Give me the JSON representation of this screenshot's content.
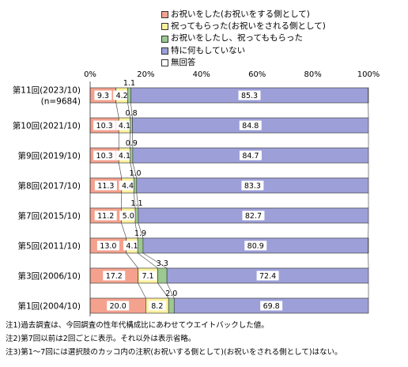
{
  "chart_data": {
    "type": "bar",
    "orientation": "horizontal",
    "stacked": true,
    "percent": true,
    "categories": [
      [
        "第11回(2023/10)",
        "(n=9684)"
      ],
      [
        "第10回(2021/10)"
      ],
      [
        "第9回(2019/10)"
      ],
      [
        "第8回(2017/10)"
      ],
      [
        "第7回(2015/10)"
      ],
      [
        "第5回(2011/10)"
      ],
      [
        "第3回(2006/10)"
      ],
      [
        "第1回(2004/10)"
      ]
    ],
    "series": [
      {
        "name": "お祝いをした(お祝いをする側として)",
        "color": "#f4a18e",
        "values": [
          9.3,
          10.3,
          10.3,
          11.3,
          11.2,
          13.0,
          17.2,
          20.0
        ],
        "labels": [
          "9.3",
          "10.3",
          "10.3",
          "11.3",
          "11.2",
          "13.0",
          "17.2",
          "20.0"
        ]
      },
      {
        "name": "祝ってもらった(お祝いをされる側として)",
        "color": "#fdf09c",
        "values": [
          4.2,
          4.1,
          4.1,
          4.4,
          5.0,
          4.1,
          7.1,
          8.2
        ],
        "labels": [
          "4.2",
          "4.1",
          "4.1",
          "4.4",
          "5.0",
          "4.1",
          "7.1",
          "8.2"
        ]
      },
      {
        "name": "お祝いをしたし、祝ってももらった",
        "color": "#9bc991",
        "values": [
          1.1,
          0.8,
          0.9,
          1.0,
          1.1,
          1.9,
          3.3,
          2.0
        ],
        "labels": [
          "1.1",
          "0.8",
          "0.9",
          "1.0",
          "1.1",
          "1.9",
          "3.3",
          "2.0"
        ]
      },
      {
        "name": "特に何もしていない",
        "color": "#9c9fd8",
        "values": [
          85.3,
          84.8,
          84.7,
          83.3,
          82.7,
          80.9,
          72.4,
          69.8
        ],
        "labels": [
          "85.3",
          "84.8",
          "84.7",
          "83.3",
          "82.7",
          "80.9",
          "72.4",
          "69.8"
        ]
      },
      {
        "name": "無回答",
        "color": "#ffffff",
        "values": [
          0.1,
          0.0,
          0.0,
          0.0,
          0.0,
          0.1,
          0.0,
          0.0
        ],
        "labels": []
      }
    ],
    "xlim": [
      0,
      100
    ],
    "xticks": [
      "0%",
      "20%",
      "40%",
      "60%",
      "80%",
      "100%"
    ],
    "grid": false,
    "legend": "top-right"
  },
  "notes": [
    "注1)過去調査は、今回調査の性年代構成比にあわせてウエイトバックした値。",
    "注2)第7回以前は2回ごとに表示。それ以外は表示省略。",
    "注3)第1～7回には選択肢のカッコ内の注釈(お祝いする側として)(お祝いをされる側として)はない。"
  ]
}
